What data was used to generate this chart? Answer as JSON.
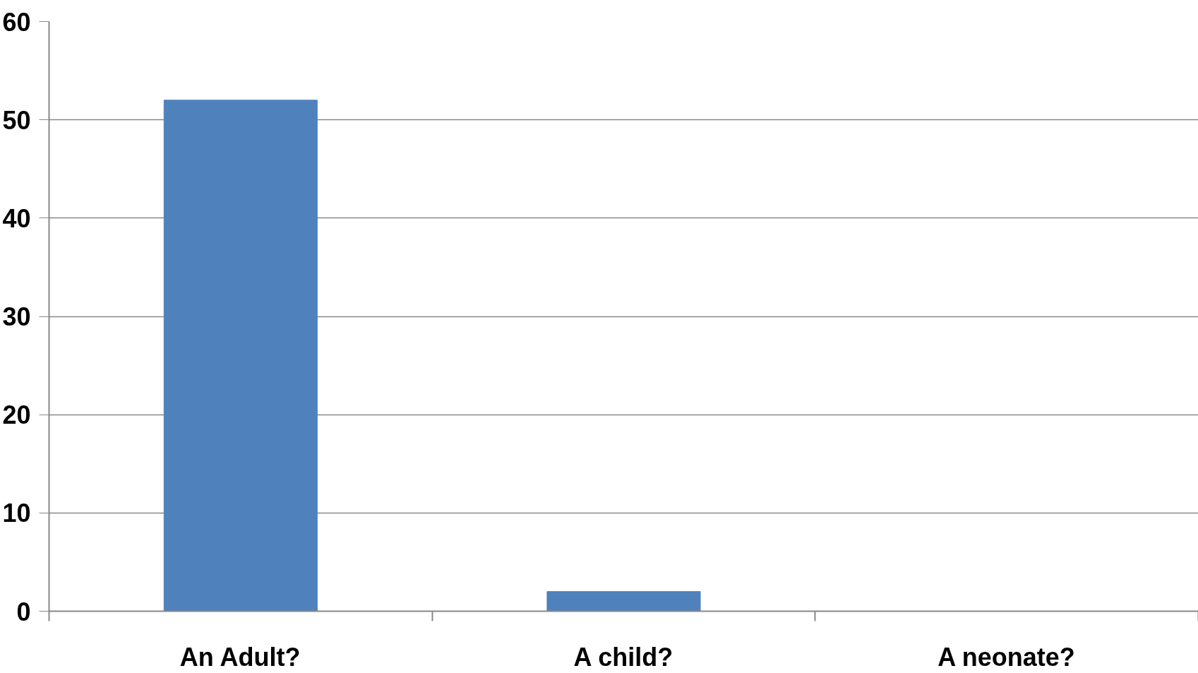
{
  "chart_data": {
    "type": "bar",
    "categories": [
      "An Adult?",
      "A child?",
      "A neonate?"
    ],
    "values": [
      52,
      2,
      0
    ],
    "color": "#4f81bd",
    "ylim": [
      0,
      60
    ],
    "yticks": [
      0,
      10,
      20,
      30,
      40,
      50,
      60
    ],
    "grid": "y"
  }
}
